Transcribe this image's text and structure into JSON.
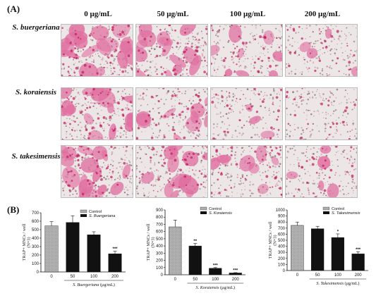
{
  "panel_a_label": "(A)",
  "panel_b_label": "(B)",
  "concentrations": [
    "0 μg/mL",
    "50 μg/mL",
    "100 μg/mL",
    "200 μg/mL"
  ],
  "species": [
    "S. buergeriana",
    "S. koraiensis",
    "S. takesimensis"
  ],
  "micrographs": {
    "stain_color": "#e06fa0",
    "background_color": "#ede6e6",
    "osteoclast_density": [
      [
        0.95,
        0.75,
        0.45,
        0.2
      ],
      [
        0.9,
        0.5,
        0.15,
        0.02
      ],
      [
        0.9,
        0.7,
        0.45,
        0.25
      ]
    ]
  },
  "colors": {
    "control": "#b8b8b8",
    "treated": "#111111"
  },
  "chart_data": [
    {
      "type": "bar",
      "ylabel": "TRAP+ MNCs / well (N=3)",
      "xlabel": "S. Buergeriana (μg/mL)",
      "categories": [
        "0",
        "50",
        "100",
        "200"
      ],
      "ylim": [
        0,
        700
      ],
      "yticks": [
        0,
        100,
        200,
        300,
        400,
        500,
        600,
        700
      ],
      "legend": [
        "Control",
        "S. Buergeriana"
      ],
      "legend_position": "top-right",
      "values": [
        545,
        585,
        440,
        215
      ],
      "errors": [
        50,
        80,
        35,
        30
      ],
      "significance": [
        "",
        "",
        "",
        "***"
      ]
    },
    {
      "type": "bar",
      "ylabel": "TRAP+ MNCs / well (N=3)",
      "xlabel": "S. Koraiensis (μg/mL)",
      "categories": [
        "0",
        "50",
        "100",
        "200"
      ],
      "ylim": [
        0,
        900
      ],
      "yticks": [
        0,
        100,
        200,
        300,
        400,
        500,
        600,
        700,
        800,
        900
      ],
      "legend": [
        "Control",
        "S. Koraiensis"
      ],
      "legend_position": "top-right",
      "values": [
        665,
        400,
        90,
        25
      ],
      "errors": [
        95,
        35,
        10,
        5
      ],
      "significance": [
        "",
        "**",
        "***",
        "***"
      ]
    },
    {
      "type": "bar",
      "ylabel": "TRAP+ MNCs / well (N=3)",
      "xlabel": "S. Takesimensis (μg/mL)",
      "categories": [
        "0",
        "50",
        "100",
        "200"
      ],
      "ylim": [
        0,
        1000
      ],
      "yticks": [
        0,
        100,
        200,
        300,
        400,
        500,
        600,
        700,
        800,
        900,
        1000
      ],
      "legend": [
        "Control",
        "S. Takesimensis"
      ],
      "legend_position": "top-right",
      "values": [
        745,
        690,
        545,
        275
      ],
      "errors": [
        55,
        40,
        60,
        35
      ],
      "significance": [
        "",
        "",
        "*",
        "***"
      ]
    }
  ]
}
